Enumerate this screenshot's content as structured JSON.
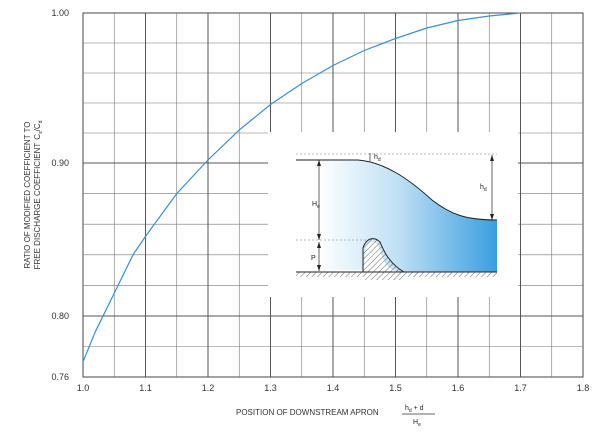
{
  "chart_data": {
    "type": "line",
    "xlabel": "POSITION OF DOWNSTREAM APRON",
    "xlabel_fraction": {
      "numerator": "h_d + d",
      "denominator": "H_e"
    },
    "ylabel_line1": "RATIO OF MODIFIED COEFFICIENT TO",
    "ylabel_line2": "FREE DISCHARGE COEFFICIENT",
    "ylabel_symbol": "C_s/C_d",
    "xlim": [
      1.0,
      1.8
    ],
    "ylim": [
      0.76,
      1.0
    ],
    "x_ticks": [
      1.0,
      1.1,
      1.2,
      1.3,
      1.4,
      1.5,
      1.6,
      1.7,
      1.8
    ],
    "x_tick_labels": [
      "1.0",
      "1.1",
      "1.2",
      "1.3",
      "1.4",
      "1.5",
      "1.6",
      "1.7",
      "1.8"
    ],
    "y_ticks": [
      0.76,
      0.8,
      0.9,
      1.0
    ],
    "y_tick_labels": [
      "0.76",
      "0.80",
      "0.90",
      "1.00"
    ],
    "grid": true,
    "series": [
      {
        "x": [
          1.0,
          1.02,
          1.05,
          1.08,
          1.1,
          1.15,
          1.2,
          1.25,
          1.3,
          1.35,
          1.4,
          1.45,
          1.5,
          1.55,
          1.6,
          1.65,
          1.7
        ],
        "y": [
          0.77,
          0.79,
          0.815,
          0.84,
          0.852,
          0.88,
          0.902,
          0.922,
          0.939,
          0.953,
          0.965,
          0.975,
          0.983,
          0.99,
          0.995,
          0.998,
          1.0
        ]
      }
    ],
    "color": "#3b8fd3",
    "inset_labels": {
      "hd_small": "h_d",
      "hd": "h_d",
      "He": "H_e",
      "P": "P"
    }
  }
}
